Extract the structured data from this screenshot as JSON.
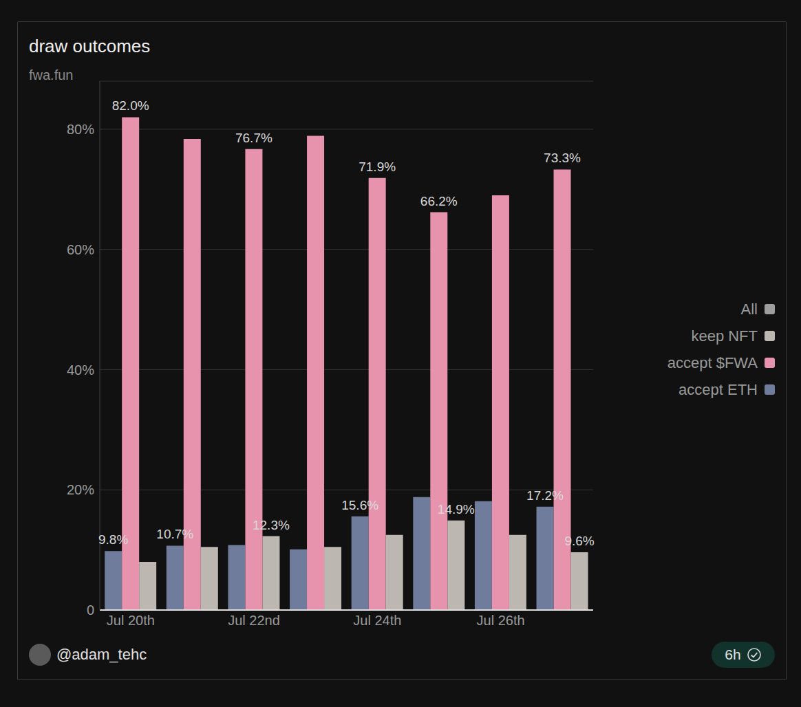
{
  "chart_data": {
    "type": "bar",
    "title": "draw outcomes",
    "subtitle": "fwa.fun",
    "annotations": [
      "@adam_tehc",
      "6h"
    ],
    "categories": [
      "Jul 20th",
      null,
      "Jul 22nd",
      null,
      "Jul 24th",
      null,
      "Jul 26th",
      null
    ],
    "series": [
      {
        "name": "All",
        "color": "#9e9e9e",
        "values": [
          null,
          null,
          null,
          null,
          null,
          null,
          null,
          null
        ]
      },
      {
        "name": "keep NFT",
        "color": "#bdb7b2",
        "values": [
          8.0,
          10.5,
          12.3,
          10.5,
          12.5,
          14.9,
          12.5,
          9.6
        ],
        "value_labels": [
          null,
          null,
          "12.3%",
          null,
          null,
          "14.9%",
          null,
          "9.6%"
        ]
      },
      {
        "name": "accept $FWA",
        "color": "#e893ae",
        "values": [
          82.0,
          78.4,
          76.7,
          78.9,
          71.9,
          66.2,
          69.0,
          73.3
        ],
        "value_labels": [
          "82.0%",
          null,
          "76.7%",
          null,
          "71.9%",
          "66.2%",
          null,
          "73.3%"
        ]
      },
      {
        "name": "accept ETH",
        "color": "#6f7c9c",
        "values": [
          9.8,
          10.7,
          10.8,
          10.1,
          15.6,
          18.8,
          18.1,
          17.2
        ],
        "value_labels": [
          "9.8%",
          "10.7%",
          null,
          null,
          "15.6%",
          null,
          null,
          "17.2%"
        ]
      }
    ],
    "ylim": [
      0,
      88
    ],
    "yticks": [
      0,
      {
        "value": 20,
        "label": "20%"
      },
      {
        "value": 40,
        "label": "40%"
      },
      {
        "value": 60,
        "label": "60%"
      },
      {
        "value": 80,
        "label": "80%"
      }
    ],
    "grid": true,
    "legend": "right",
    "data_labels": true
  }
}
